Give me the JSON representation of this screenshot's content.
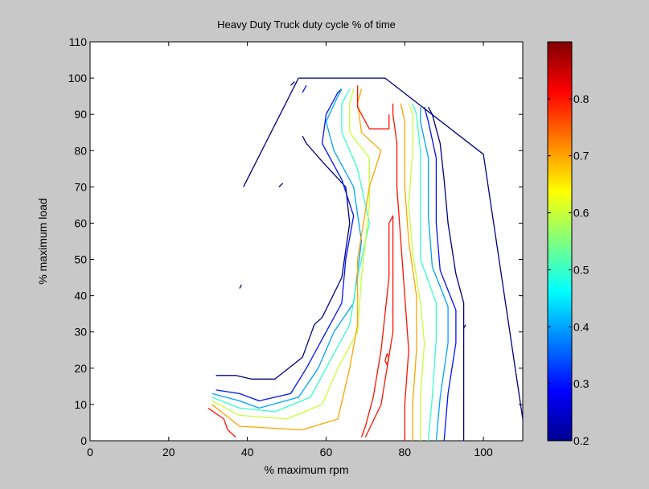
{
  "chart_data": {
    "type": "contour",
    "title": "Heavy Duty Truck duty cycle % of time",
    "xlabel": "% maximum rpm",
    "ylabel": "% maximum load",
    "xlim": [
      0,
      110
    ],
    "ylim": [
      0,
      110
    ],
    "x_ticks": [
      "0",
      "20",
      "40",
      "60",
      "80",
      "100"
    ],
    "y_ticks": [
      "0",
      "10",
      "20",
      "30",
      "40",
      "50",
      "60",
      "70",
      "80",
      "90",
      "100",
      "110"
    ],
    "grid": false,
    "colorbar": {
      "colormap": "jet",
      "range": [
        0.2,
        0.9
      ],
      "ticks": [
        "0.2",
        "0.3",
        "0.4",
        "0.5",
        "0.6",
        "0.7",
        "0.8"
      ]
    },
    "max_torque_curve": {
      "level": 0.2,
      "points": [
        [
          39,
          70
        ],
        [
          53,
          100
        ],
        [
          75,
          100
        ],
        [
          100,
          79
        ],
        [
          110,
          6
        ]
      ]
    },
    "contours": [
      {
        "level": 0.2,
        "points": [
          [
            32,
            18
          ],
          [
            37,
            18
          ],
          [
            41,
            17
          ],
          [
            47,
            17
          ],
          [
            54,
            23
          ],
          [
            57,
            32
          ],
          [
            59,
            34
          ],
          [
            64,
            45
          ],
          [
            66,
            60
          ],
          [
            65,
            70
          ],
          [
            59,
            77
          ],
          [
            55,
            82
          ],
          [
            54,
            84
          ]
        ]
      },
      {
        "level": 0.3,
        "points": [
          [
            32,
            14
          ],
          [
            38,
            13
          ],
          [
            43,
            11
          ],
          [
            51,
            13
          ],
          [
            55,
            20
          ],
          [
            60,
            30
          ],
          [
            64,
            38
          ],
          [
            65,
            50
          ],
          [
            67,
            62
          ],
          [
            64,
            72
          ],
          [
            59,
            82
          ],
          [
            60,
            90
          ],
          [
            63,
            96
          ],
          [
            64,
            97
          ]
        ]
      },
      {
        "level": 0.4,
        "points": [
          [
            31,
            13
          ],
          [
            38,
            11
          ],
          [
            43,
            9
          ],
          [
            53,
            12
          ],
          [
            58,
            20
          ],
          [
            62,
            30
          ],
          [
            67,
            38
          ],
          [
            69,
            55
          ],
          [
            67,
            70
          ],
          [
            62,
            80
          ],
          [
            60,
            88
          ],
          [
            63,
            95
          ],
          [
            64,
            97
          ]
        ]
      },
      {
        "level": 0.5,
        "points": [
          [
            31,
            12
          ],
          [
            38,
            9
          ],
          [
            47,
            8
          ],
          [
            56,
            12
          ],
          [
            61,
            22
          ],
          [
            66,
            32
          ],
          [
            68,
            45
          ],
          [
            71,
            60
          ],
          [
            68,
            75
          ],
          [
            64,
            85
          ],
          [
            64,
            93
          ],
          [
            66,
            97
          ]
        ]
      },
      {
        "level": 0.6,
        "points": [
          [
            31,
            11
          ],
          [
            38,
            7
          ],
          [
            50,
            6
          ],
          [
            59,
            10
          ],
          [
            63,
            20
          ],
          [
            68,
            30
          ],
          [
            69,
            45
          ],
          [
            71,
            65
          ],
          [
            71,
            78
          ],
          [
            66,
            85
          ],
          [
            66,
            93
          ],
          [
            67,
            97
          ]
        ]
      },
      {
        "level": 0.7,
        "points": [
          [
            31,
            10
          ],
          [
            38,
            4
          ],
          [
            54,
            3
          ],
          [
            63,
            6
          ],
          [
            66,
            20
          ],
          [
            68,
            32
          ],
          [
            68,
            50
          ],
          [
            71,
            70
          ],
          [
            74,
            80
          ],
          [
            69,
            85
          ],
          [
            68,
            93
          ],
          [
            69,
            97
          ]
        ]
      },
      {
        "level": 0.8,
        "points": [
          [
            30,
            9
          ],
          [
            34,
            6
          ],
          [
            35,
            3
          ],
          [
            37,
            1
          ]
        ]
      },
      {
        "level": 0.8,
        "points": [
          [
            70,
            1
          ],
          [
            74,
            10
          ],
          [
            77,
            30
          ],
          [
            77,
            50
          ],
          [
            77,
            62
          ],
          [
            76,
            60
          ],
          [
            76,
            45
          ],
          [
            74,
            25
          ],
          [
            72,
            12
          ],
          [
            70,
            4
          ],
          [
            69,
            1
          ]
        ]
      },
      {
        "level": 0.8,
        "points": [
          [
            68,
            98
          ],
          [
            68,
            92
          ],
          [
            71,
            86
          ],
          [
            76,
            86
          ],
          [
            76,
            90
          ]
        ]
      },
      {
        "level": 0.8,
        "points": [
          [
            75,
            22
          ],
          [
            75.5,
            24
          ],
          [
            76,
            23
          ],
          [
            75.5,
            21
          ],
          [
            75,
            22
          ]
        ]
      },
      {
        "level": 0.8,
        "points": [
          [
            80,
            0
          ],
          [
            80,
            10
          ],
          [
            81,
            25
          ],
          [
            80,
            40
          ],
          [
            79,
            55
          ],
          [
            78,
            70
          ],
          [
            78,
            82
          ],
          [
            77,
            90
          ],
          [
            77,
            93
          ]
        ]
      },
      {
        "level": 0.7,
        "points": [
          [
            82,
            0
          ],
          [
            82,
            10
          ],
          [
            83,
            25
          ],
          [
            83,
            40
          ],
          [
            81,
            55
          ],
          [
            80,
            70
          ],
          [
            80,
            82
          ],
          [
            80,
            88
          ],
          [
            79,
            93
          ]
        ]
      },
      {
        "level": 0.6,
        "points": [
          [
            84,
            0
          ],
          [
            84,
            12
          ],
          [
            85,
            27
          ],
          [
            84,
            38
          ],
          [
            82,
            52
          ],
          [
            81,
            65
          ],
          [
            82,
            80
          ],
          [
            82,
            90
          ],
          [
            81,
            93
          ]
        ]
      },
      {
        "level": 0.5,
        "points": [
          [
            86,
            0
          ],
          [
            87,
            12
          ],
          [
            88,
            28
          ],
          [
            88,
            38
          ],
          [
            84,
            50
          ],
          [
            84,
            65
          ],
          [
            84,
            80
          ],
          [
            83,
            90
          ],
          [
            82,
            93
          ]
        ]
      },
      {
        "level": 0.4,
        "points": [
          [
            88,
            0
          ],
          [
            89,
            12
          ],
          [
            91,
            27
          ],
          [
            91,
            37
          ],
          [
            87,
            48
          ],
          [
            86,
            62
          ],
          [
            86,
            78
          ],
          [
            84,
            88
          ],
          [
            84,
            92
          ]
        ]
      },
      {
        "level": 0.3,
        "points": [
          [
            90,
            0
          ],
          [
            91,
            13
          ],
          [
            93,
            27
          ],
          [
            93,
            36
          ],
          [
            89,
            47
          ],
          [
            88,
            60
          ],
          [
            88,
            78
          ],
          [
            86,
            88
          ],
          [
            85,
            92
          ]
        ]
      },
      {
        "level": 0.2,
        "points": [
          [
            95,
            0
          ],
          [
            95,
            12
          ],
          [
            95,
            28
          ],
          [
            95,
            38
          ],
          [
            93,
            46
          ],
          [
            91,
            60
          ],
          [
            90,
            72
          ],
          [
            89,
            82
          ],
          [
            87,
            90
          ],
          [
            86,
            92
          ]
        ]
      },
      {
        "level": 0.2,
        "points": [
          [
            38,
            42
          ],
          [
            38.5,
            43
          ]
        ]
      },
      {
        "level": 0.2,
        "points": [
          [
            48,
            70
          ],
          [
            49,
            71
          ]
        ]
      },
      {
        "level": 0.2,
        "points": [
          [
            95,
            31
          ],
          [
            95.5,
            32
          ]
        ]
      },
      {
        "level": 0.2,
        "points": [
          [
            51,
            98
          ],
          [
            52,
            99
          ]
        ]
      },
      {
        "level": 0.3,
        "points": [
          [
            54,
            96
          ],
          [
            55,
            98
          ]
        ]
      }
    ]
  }
}
